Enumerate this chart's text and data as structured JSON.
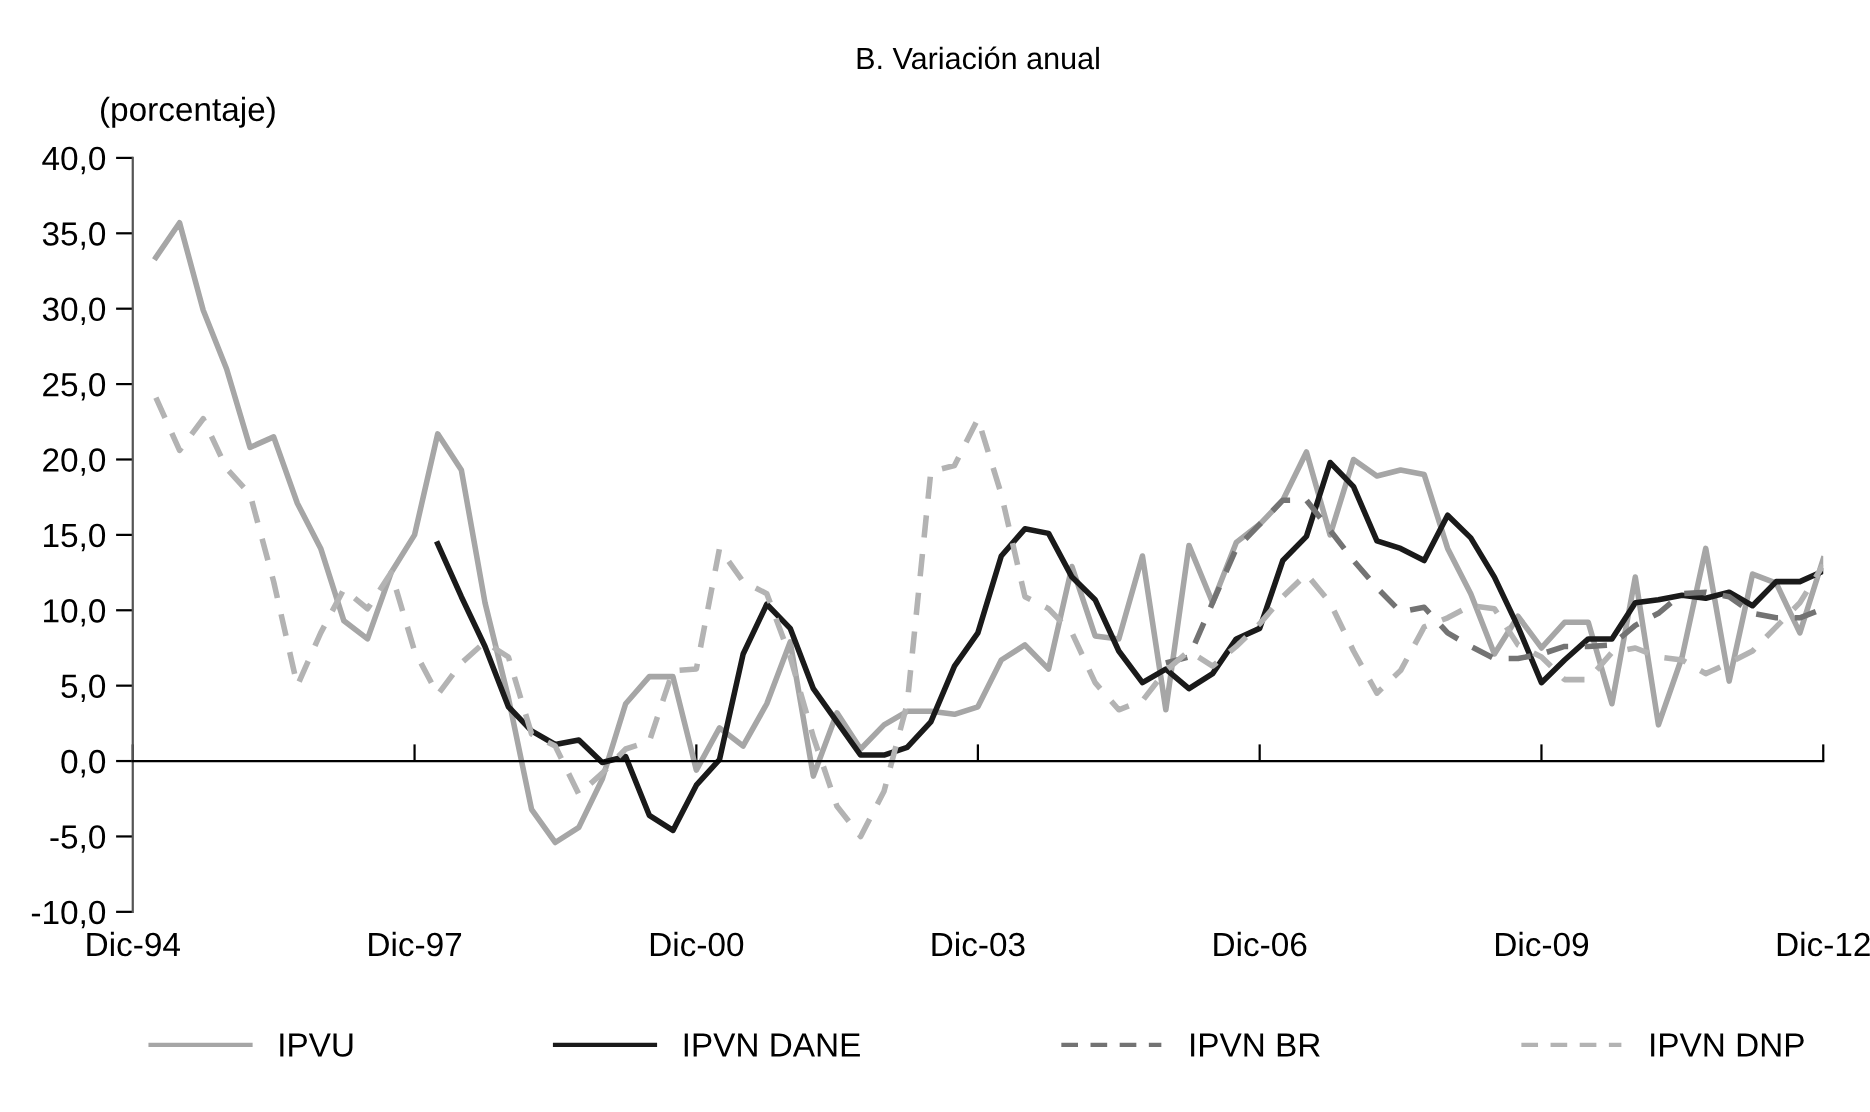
{
  "chart_data": {
    "type": "line",
    "title": "B. Variación anual",
    "ylabel": "(porcentaje)",
    "x": [
      "1995-03",
      "1995-06",
      "1995-09",
      "1995-12",
      "1996-03",
      "1996-06",
      "1996-09",
      "1996-12",
      "1997-03",
      "1997-06",
      "1997-09",
      "1997-12",
      "1998-03",
      "1998-06",
      "1998-09",
      "1998-12",
      "1999-03",
      "1999-06",
      "1999-09",
      "1999-12",
      "2000-03",
      "2000-06",
      "2000-09",
      "2000-12",
      "2001-03",
      "2001-06",
      "2001-09",
      "2001-12",
      "2002-03",
      "2002-06",
      "2002-09",
      "2002-12",
      "2003-03",
      "2003-06",
      "2003-09",
      "2003-12",
      "2004-03",
      "2004-06",
      "2004-09",
      "2004-12",
      "2005-03",
      "2005-06",
      "2005-09",
      "2005-12",
      "2006-03",
      "2006-06",
      "2006-09",
      "2006-12",
      "2007-03",
      "2007-06",
      "2007-09",
      "2007-12",
      "2008-03",
      "2008-06",
      "2008-09",
      "2008-12",
      "2009-03",
      "2009-06",
      "2009-09",
      "2009-12",
      "2010-03",
      "2010-06",
      "2010-09",
      "2010-12",
      "2011-03",
      "2011-06",
      "2011-09",
      "2011-12",
      "2012-03",
      "2012-06",
      "2012-09",
      "2012-12"
    ],
    "series": [
      {
        "name": "IPVU",
        "color": "#a6a6a6",
        "line_style": "solid",
        "values": [
          33.4,
          35.7,
          29.9,
          26.0,
          20.8,
          21.5,
          17.1,
          14.1,
          9.3,
          8.1,
          12.5,
          15.0,
          21.7,
          19.3,
          10.5,
          4.2,
          -3.2,
          -5.4,
          -4.4,
          -1.2,
          3.8,
          5.6,
          5.6,
          -0.6,
          2.2,
          1.0,
          3.8,
          7.9,
          -1.0,
          3.2,
          0.8,
          2.4,
          3.3,
          3.3,
          3.1,
          3.6,
          6.7,
          7.7,
          6.1,
          12.9,
          8.3,
          8.1,
          13.6,
          3.4,
          14.3,
          10.5,
          14.5,
          15.7,
          17.3,
          20.5,
          15.0,
          20.0,
          18.9,
          19.3,
          19.0,
          14.1,
          11.1,
          7.1,
          9.6,
          7.5,
          9.2,
          9.2,
          3.8,
          12.2,
          2.4,
          6.9,
          14.1,
          5.3,
          12.4,
          11.8,
          8.5,
          13.4
        ]
      },
      {
        "name": "IPVN DANE",
        "color": "#1a1a1a",
        "line_style": "solid",
        "values": [
          null,
          null,
          null,
          null,
          null,
          null,
          null,
          null,
          null,
          null,
          null,
          null,
          14.4,
          10.9,
          7.6,
          3.6,
          2.0,
          1.1,
          1.4,
          -0.1,
          0.3,
          -3.6,
          -4.6,
          -1.6,
          0.1,
          7.1,
          10.4,
          8.8,
          4.8,
          2.6,
          0.4,
          0.4,
          0.9,
          2.6,
          6.3,
          8.5,
          13.6,
          15.4,
          15.1,
          12.2,
          10.7,
          7.3,
          5.2,
          6.1,
          4.8,
          5.8,
          8.1,
          8.8,
          13.3,
          14.9,
          19.8,
          18.2,
          14.6,
          14.1,
          13.3,
          16.3,
          14.8,
          12.2,
          8.9,
          5.2,
          6.7,
          8.1,
          8.1,
          10.5,
          10.7,
          11.0,
          10.8,
          11.2,
          10.3,
          11.9,
          11.9,
          12.6
        ]
      },
      {
        "name": "IPVN BR",
        "color": "#737373",
        "line_style": "dashed",
        "values": [
          null,
          null,
          null,
          null,
          null,
          null,
          null,
          null,
          null,
          null,
          null,
          null,
          null,
          null,
          null,
          null,
          null,
          null,
          null,
          null,
          null,
          null,
          null,
          null,
          null,
          null,
          null,
          null,
          null,
          null,
          null,
          null,
          null,
          null,
          null,
          null,
          null,
          null,
          null,
          null,
          null,
          null,
          null,
          6.5,
          6.9,
          10.5,
          14.1,
          15.7,
          17.3,
          17.3,
          15.3,
          13.3,
          11.5,
          9.9,
          10.2,
          8.5,
          7.6,
          6.8,
          6.8,
          7.1,
          7.6,
          7.6,
          7.7,
          9.0,
          9.8,
          11.1,
          11.2,
          10.9,
          9.8,
          9.5,
          9.5,
          10.1
        ]
      },
      {
        "name": "IPVN DNP",
        "color": "#b3b3b3",
        "line_style": "dashed",
        "values": [
          24.1,
          20.6,
          22.7,
          19.4,
          17.7,
          11.9,
          5.0,
          8.5,
          11.4,
          10.1,
          12.5,
          7.3,
          4.4,
          6.5,
          7.9,
          6.9,
          1.8,
          1.0,
          -2.2,
          -0.8,
          0.8,
          1.3,
          6.0,
          6.1,
          14.1,
          11.9,
          11.1,
          6.9,
          1.6,
          -3.0,
          -5.0,
          -2.0,
          3.8,
          19.2,
          19.6,
          22.7,
          17.7,
          10.9,
          10.1,
          8.5,
          5.2,
          3.4,
          4.0,
          6.0,
          7.3,
          6.3,
          7.6,
          9.1,
          10.9,
          12.4,
          10.5,
          7.3,
          4.5,
          6.0,
          8.9,
          9.5,
          10.3,
          10.1,
          7.7,
          6.9,
          5.4,
          5.4,
          7.2,
          7.5,
          6.9,
          6.7,
          5.8,
          6.5,
          7.3,
          8.9,
          10.5,
          13.0
        ]
      }
    ],
    "xlim": [
      "1994-12",
      "2012-12"
    ],
    "xticks": [
      {
        "value": "1994-12",
        "label": "Dic-94"
      },
      {
        "value": "1997-12",
        "label": "Dic-97"
      },
      {
        "value": "2000-12",
        "label": "Dic-00"
      },
      {
        "value": "2003-12",
        "label": "Dic-03"
      },
      {
        "value": "2006-12",
        "label": "Dic-06"
      },
      {
        "value": "2009-12",
        "label": "Dic-09"
      },
      {
        "value": "2012-12",
        "label": "Dic-12"
      }
    ],
    "ylim": [
      -10,
      40
    ],
    "yticks": [
      {
        "value": -10,
        "label": "-10,0"
      },
      {
        "value": -5,
        "label": "-5,0"
      },
      {
        "value": 0,
        "label": "0,0"
      },
      {
        "value": 5,
        "label": "5,0"
      },
      {
        "value": 10,
        "label": "10,0"
      },
      {
        "value": 15,
        "label": "15,0"
      },
      {
        "value": 20,
        "label": "20,0"
      },
      {
        "value": 25,
        "label": "25,0"
      },
      {
        "value": 30,
        "label": "30,0"
      },
      {
        "value": 35,
        "label": "35,0"
      },
      {
        "value": 40,
        "label": "40,0"
      }
    ],
    "legend": "bottom",
    "marker": "none"
  }
}
